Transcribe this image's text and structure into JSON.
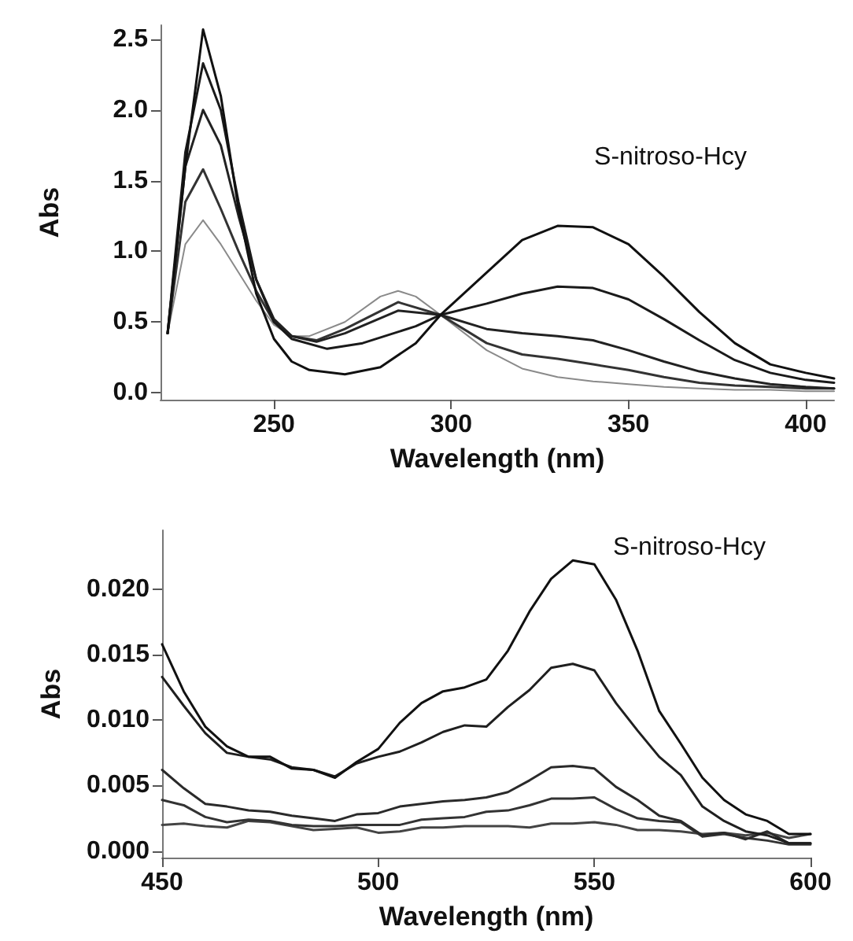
{
  "chart_data": [
    {
      "type": "line",
      "xlabel": "Wavelength (nm)",
      "ylabel": "Abs",
      "xlim": [
        218,
        408
      ],
      "ylim": [
        -0.05,
        2.6
      ],
      "xticks": [
        250,
        300,
        350,
        400
      ],
      "yticks": [
        {
          "value": 0,
          "label": "0.0"
        },
        {
          "value": 0.5,
          "label": "0.5"
        },
        {
          "value": 1,
          "label": "1.0"
        },
        {
          "value": 1.5,
          "label": "1.5"
        },
        {
          "value": 2,
          "label": "2.0"
        },
        {
          "value": 2.5,
          "label": "2.5"
        }
      ],
      "grid": false,
      "marker": "none",
      "line_style": "solid",
      "annotations": [
        "S-nitroso-Hcy"
      ],
      "series": [
        {
          "color": "#8a8a8a",
          "x": [
            220,
            225,
            230,
            235,
            240,
            245,
            250,
            255,
            260,
            270,
            280,
            285,
            290,
            297,
            310,
            320,
            330,
            340,
            350,
            360,
            370,
            380,
            390,
            400,
            408
          ],
          "values": [
            0.42,
            1.05,
            1.22,
            1.05,
            0.85,
            0.65,
            0.48,
            0.4,
            0.4,
            0.5,
            0.68,
            0.72,
            0.68,
            0.55,
            0.3,
            0.17,
            0.11,
            0.08,
            0.06,
            0.04,
            0.03,
            0.02,
            0.02,
            0.01,
            0.01
          ]
        },
        {
          "color": "#333333",
          "x": [
            220,
            225,
            230,
            235,
            240,
            245,
            250,
            255,
            262,
            270,
            285,
            297,
            310,
            320,
            330,
            340,
            350,
            360,
            370,
            380,
            390,
            400,
            408
          ],
          "values": [
            0.42,
            1.35,
            1.58,
            1.3,
            1.0,
            0.72,
            0.5,
            0.4,
            0.37,
            0.45,
            0.64,
            0.55,
            0.35,
            0.27,
            0.24,
            0.2,
            0.16,
            0.11,
            0.07,
            0.05,
            0.04,
            0.03,
            0.03
          ]
        },
        {
          "color": "#222222",
          "x": [
            220,
            225,
            230,
            235,
            240,
            245,
            250,
            255,
            262,
            270,
            285,
            297,
            310,
            320,
            330,
            340,
            350,
            360,
            370,
            380,
            390,
            400,
            408
          ],
          "values": [
            0.42,
            1.6,
            2.0,
            1.75,
            1.25,
            0.8,
            0.52,
            0.4,
            0.36,
            0.42,
            0.58,
            0.55,
            0.45,
            0.42,
            0.4,
            0.37,
            0.3,
            0.22,
            0.15,
            0.1,
            0.06,
            0.04,
            0.03
          ]
        },
        {
          "color": "#1a1a1a",
          "x": [
            220,
            225,
            230,
            235,
            240,
            245,
            250,
            255,
            265,
            275,
            290,
            297,
            310,
            320,
            330,
            340,
            350,
            360,
            370,
            380,
            390,
            400,
            408
          ],
          "values": [
            0.42,
            1.7,
            2.33,
            2.0,
            1.35,
            0.8,
            0.5,
            0.38,
            0.31,
            0.35,
            0.47,
            0.55,
            0.63,
            0.7,
            0.75,
            0.74,
            0.66,
            0.52,
            0.37,
            0.23,
            0.14,
            0.09,
            0.07
          ]
        },
        {
          "color": "#111111",
          "x": [
            220,
            225,
            230,
            235,
            240,
            245,
            250,
            255,
            260,
            270,
            280,
            290,
            297,
            310,
            320,
            330,
            340,
            350,
            360,
            370,
            380,
            390,
            400,
            408
          ],
          "values": [
            0.42,
            1.6,
            2.57,
            2.1,
            1.3,
            0.7,
            0.38,
            0.22,
            0.16,
            0.13,
            0.18,
            0.35,
            0.55,
            0.85,
            1.08,
            1.18,
            1.17,
            1.05,
            0.82,
            0.57,
            0.35,
            0.2,
            0.14,
            0.1
          ]
        }
      ]
    },
    {
      "type": "line",
      "xlabel": "Wavelength (nm)",
      "ylabel": "Abs",
      "xlim": [
        450,
        600
      ],
      "ylim": [
        -0.0005,
        0.0245
      ],
      "xticks": [
        450,
        500,
        550,
        600
      ],
      "yticks": [
        {
          "value": 0,
          "label": "0.000"
        },
        {
          "value": 0.005,
          "label": "0.005"
        },
        {
          "value": 0.01,
          "label": "0.010"
        },
        {
          "value": 0.015,
          "label": "0.015"
        },
        {
          "value": 0.02,
          "label": "0.020"
        }
      ],
      "grid": false,
      "marker": "none",
      "line_style": "solid",
      "annotations": [
        "S-nitroso-Hcy"
      ],
      "x": [
        450,
        455,
        460,
        465,
        470,
        475,
        480,
        485,
        490,
        495,
        500,
        505,
        510,
        515,
        520,
        525,
        530,
        535,
        540,
        545,
        550,
        555,
        560,
        565,
        570,
        575,
        580,
        585,
        590,
        595,
        600
      ],
      "series": [
        {
          "color": "#444444",
          "values": [
            0.002,
            0.0021,
            0.0019,
            0.0018,
            0.0023,
            0.0022,
            0.0019,
            0.0016,
            0.0017,
            0.0018,
            0.0014,
            0.0015,
            0.0018,
            0.0018,
            0.0019,
            0.0019,
            0.0019,
            0.0018,
            0.0021,
            0.0021,
            0.0022,
            0.002,
            0.0016,
            0.0016,
            0.0015,
            0.0013,
            0.0014,
            0.0012,
            0.0014,
            0.001,
            0.0013
          ]
        },
        {
          "color": "#333333",
          "values": [
            0.0039,
            0.0035,
            0.0026,
            0.0022,
            0.0024,
            0.0023,
            0.002,
            0.0019,
            0.0019,
            0.002,
            0.002,
            0.002,
            0.0024,
            0.0025,
            0.0026,
            0.003,
            0.0031,
            0.0035,
            0.004,
            0.004,
            0.0041,
            0.0032,
            0.0025,
            0.0023,
            0.0022,
            0.0011,
            0.0013,
            0.001,
            0.0008,
            0.0005,
            0.0005
          ]
        },
        {
          "color": "#2a2a2a",
          "values": [
            0.0062,
            0.0048,
            0.0036,
            0.0034,
            0.0031,
            0.003,
            0.0027,
            0.0025,
            0.0023,
            0.0028,
            0.0029,
            0.0034,
            0.0036,
            0.0038,
            0.0039,
            0.0041,
            0.0045,
            0.0054,
            0.0064,
            0.0065,
            0.0063,
            0.0049,
            0.0039,
            0.0027,
            0.0023,
            0.0012,
            0.0014,
            0.0009,
            0.0015,
            0.0006,
            0.0006
          ]
        },
        {
          "color": "#1f1f1f",
          "values": [
            0.0133,
            0.0111,
            0.009,
            0.0075,
            0.0072,
            0.007,
            0.0064,
            0.0062,
            0.0057,
            0.0067,
            0.0072,
            0.0076,
            0.0083,
            0.0091,
            0.0096,
            0.0095,
            0.011,
            0.0123,
            0.014,
            0.0143,
            0.0138,
            0.0113,
            0.0092,
            0.0072,
            0.0058,
            0.0034,
            0.0023,
            0.0015,
            0.0012,
            0.0006,
            0.0006
          ]
        },
        {
          "color": "#111111",
          "values": [
            0.0158,
            0.0122,
            0.0095,
            0.008,
            0.0072,
            0.0072,
            0.0063,
            0.0062,
            0.0056,
            0.0068,
            0.0078,
            0.0098,
            0.0113,
            0.0122,
            0.0125,
            0.0131,
            0.0153,
            0.0183,
            0.0208,
            0.0222,
            0.0219,
            0.0192,
            0.0153,
            0.0107,
            0.0082,
            0.0056,
            0.0039,
            0.0028,
            0.0023,
            0.0013,
            0.0013
          ]
        }
      ]
    }
  ]
}
